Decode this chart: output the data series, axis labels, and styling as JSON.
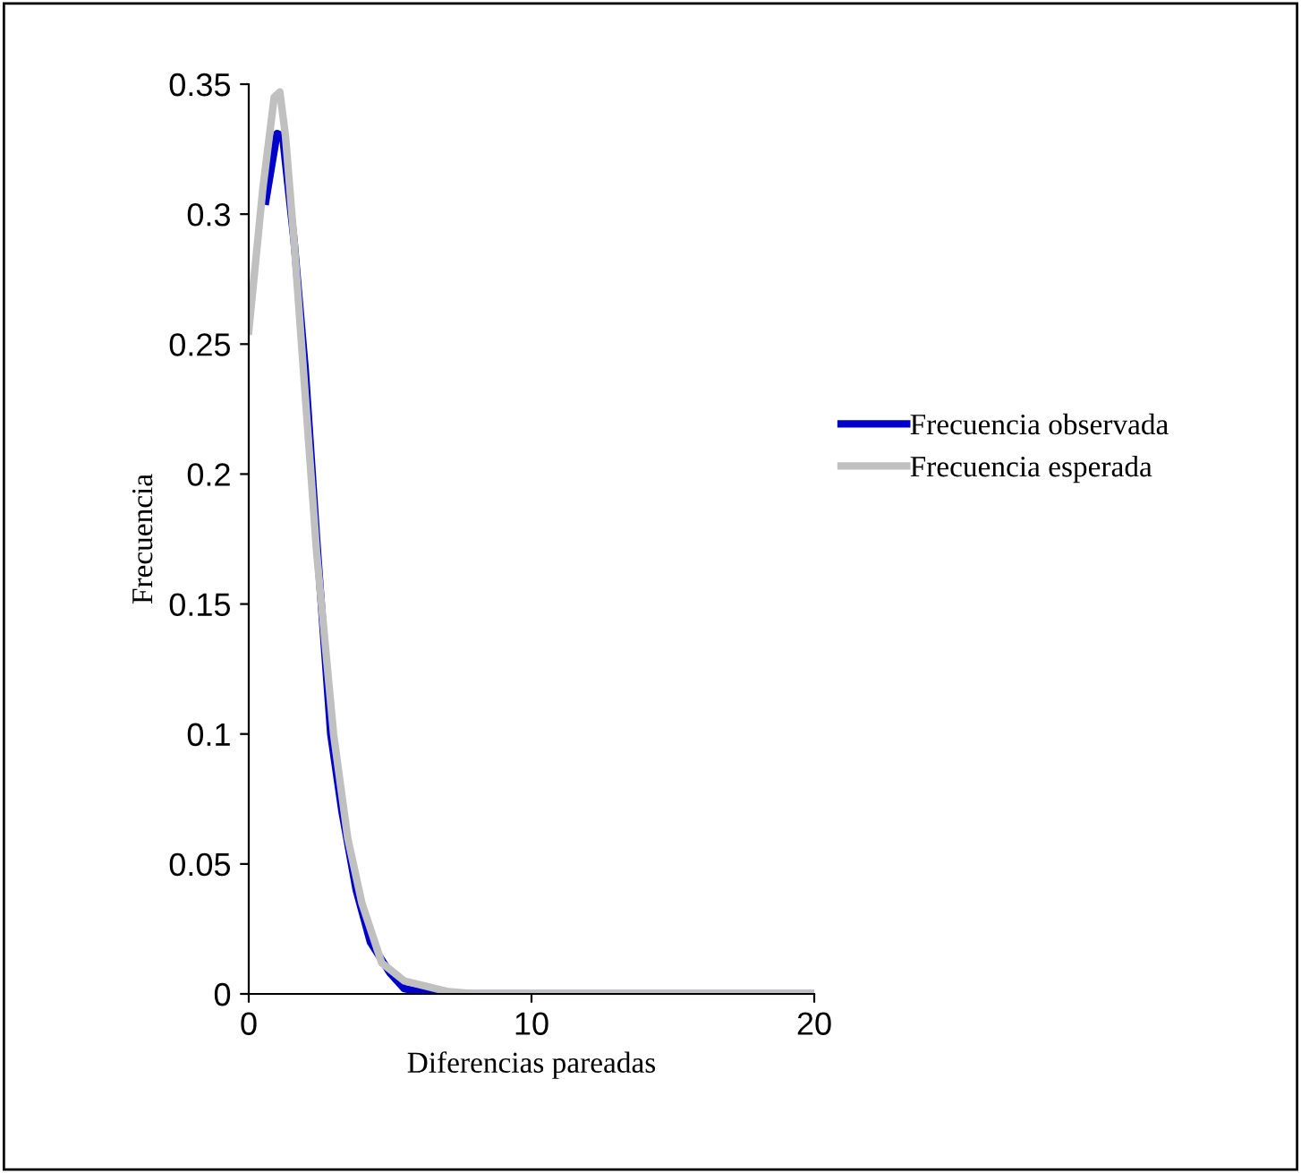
{
  "chart_data": {
    "type": "line",
    "xlabel": "Diferencias pareadas",
    "ylabel": "Frecuencia",
    "xlim": [
      0,
      20
    ],
    "xticks": [
      0,
      10,
      20
    ],
    "ylim": [
      0,
      0.35
    ],
    "yticks": [
      0,
      0.05,
      0.1,
      0.15,
      0.2,
      0.25,
      0.3,
      0.35
    ],
    "legend": "right",
    "grid": false,
    "marker": "none",
    "line_style": "solid",
    "series": [
      {
        "name": "Frecuencia observada",
        "color": "#0000cc",
        "x": [
          0.6,
          1,
          1.2,
          1.6,
          2,
          2.4,
          2.9,
          3.3,
          3.8,
          4.3,
          5,
          5.5,
          6.5,
          20
        ],
        "values": [
          0.305,
          0.331,
          0.33,
          0.29,
          0.24,
          0.175,
          0.1,
          0.07,
          0.04,
          0.02,
          0.008,
          0.002,
          0,
          0
        ]
      },
      {
        "name": "Frecuencia esperada",
        "color": "#c0c0c0",
        "x": [
          0,
          0.5,
          0.9,
          1.1,
          1.3,
          1.6,
          2.4,
          3,
          3.5,
          4,
          4.7,
          5.5,
          7,
          8,
          20
        ],
        "values": [
          0.255,
          0.31,
          0.345,
          0.347,
          0.33,
          0.29,
          0.17,
          0.1,
          0.06,
          0.035,
          0.012,
          0.005,
          0.001,
          0,
          0
        ]
      }
    ]
  }
}
